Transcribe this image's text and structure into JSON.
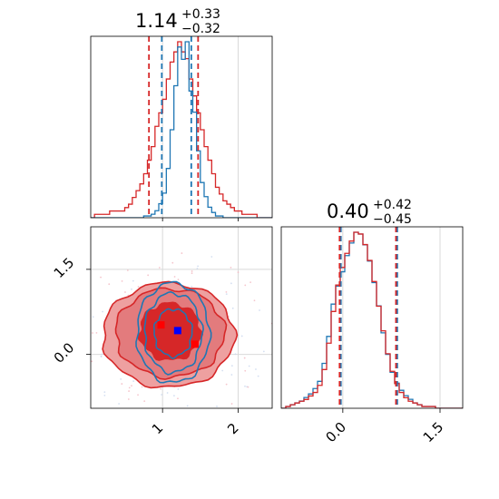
{
  "chart_data": {
    "type": "corner",
    "colors": {
      "series_a": "#1f77b4",
      "series_b": "#d62728",
      "grid": "#d9d9d9",
      "fill_dark": "#d62728",
      "fill_light": "#eea0a0",
      "marker_blue": "#0000ff",
      "marker_red": "#ff0000"
    },
    "titles": [
      {
        "value": "1.14",
        "sup": "+0.33",
        "sub": "−0.32"
      },
      {
        "value": "0.40",
        "sup": "+0.42",
        "sub": "−0.45"
      }
    ],
    "x_param1": {
      "range": [
        0.05,
        2.45
      ],
      "ticks": [
        1,
        2
      ],
      "tick_labels": [
        "1",
        "2"
      ]
    },
    "x_param2": {
      "range": [
        -0.95,
        1.85
      ],
      "ticks": [
        0.0,
        1.5
      ],
      "tick_labels": [
        "0.0",
        "1.5"
      ]
    },
    "y_param2": {
      "range": [
        -0.95,
        2.25
      ],
      "ticks": [
        0.0,
        1.5
      ],
      "tick_labels": [
        "0.0",
        "1.5"
      ]
    },
    "quantile_lines_param1": {
      "series_a": [
        0.99,
        1.38
      ],
      "series_b": [
        0.82,
        1.47
      ]
    },
    "quantile_lines_param2": {
      "series_a": [
        -0.03,
        0.84
      ],
      "series_b": [
        -0.05,
        0.82
      ]
    },
    "hist_param1": {
      "bin_start": 0.05,
      "bin_width": 0.05,
      "series_a": [
        0,
        0,
        0,
        0,
        0,
        0,
        0,
        0,
        0,
        0,
        0,
        0,
        0,
        0,
        1,
        1,
        2,
        4,
        8,
        14,
        28,
        50,
        75,
        97,
        90,
        100,
        72,
        60,
        38,
        20,
        12,
        6,
        3,
        1,
        1,
        0,
        0,
        0,
        0,
        0,
        0,
        0,
        0,
        0,
        0,
        0,
        0,
        0
      ],
      "series_b": [
        0,
        1,
        1,
        1,
        1,
        2,
        2,
        2,
        2,
        3,
        4,
        6,
        8,
        10,
        13,
        17,
        21,
        27,
        31,
        35,
        41,
        46,
        49,
        52,
        49,
        47,
        41,
        36,
        31,
        26,
        21,
        17,
        13,
        9,
        7,
        5,
        4,
        3,
        2,
        2,
        1,
        1,
        1,
        1,
        0,
        0,
        0,
        0
      ]
    },
    "hist_param2": {
      "bin_start": -0.95,
      "bin_width": 0.07,
      "series_a": [
        0,
        1,
        2,
        3,
        4,
        6,
        8,
        11,
        15,
        25,
        40,
        58,
        68,
        76,
        85,
        92,
        98,
        97,
        91,
        82,
        70,
        57,
        42,
        30,
        20,
        14,
        10,
        7,
        5,
        3,
        2,
        1,
        1,
        1,
        0,
        0,
        0,
        0,
        0,
        0
      ],
      "series_b": [
        0,
        1,
        2,
        3,
        4,
        5,
        7,
        9,
        13,
        22,
        37,
        55,
        70,
        80,
        88,
        95,
        100,
        99,
        93,
        84,
        72,
        58,
        44,
        31,
        21,
        14,
        9,
        6,
        4,
        3,
        2,
        1,
        1,
        1,
        0,
        0,
        0,
        0,
        0,
        0
      ]
    },
    "contours_series_a": [
      {
        "cx": 1.14,
        "cy": 0.38,
        "rx": 0.25,
        "ry": 0.42
      },
      {
        "cx": 1.14,
        "cy": 0.38,
        "rx": 0.38,
        "ry": 0.7
      },
      {
        "cx": 1.14,
        "cy": 0.38,
        "rx": 0.48,
        "ry": 0.88
      }
    ],
    "contours_series_b": [
      {
        "cx": 1.1,
        "cy": 0.4,
        "rx": 0.4,
        "ry": 0.5
      },
      {
        "cx": 1.1,
        "cy": 0.38,
        "rx": 0.72,
        "ry": 0.78
      },
      {
        "cx": 1.08,
        "cy": 0.34,
        "rx": 0.87,
        "ry": 0.92
      }
    ],
    "markers": [
      {
        "x": 1.2,
        "y": 0.42,
        "color": "marker_blue"
      },
      {
        "x": 0.98,
        "y": 0.52,
        "color": "marker_red"
      },
      {
        "x": 1.43,
        "y": 0.18,
        "color": "marker_red"
      }
    ]
  }
}
